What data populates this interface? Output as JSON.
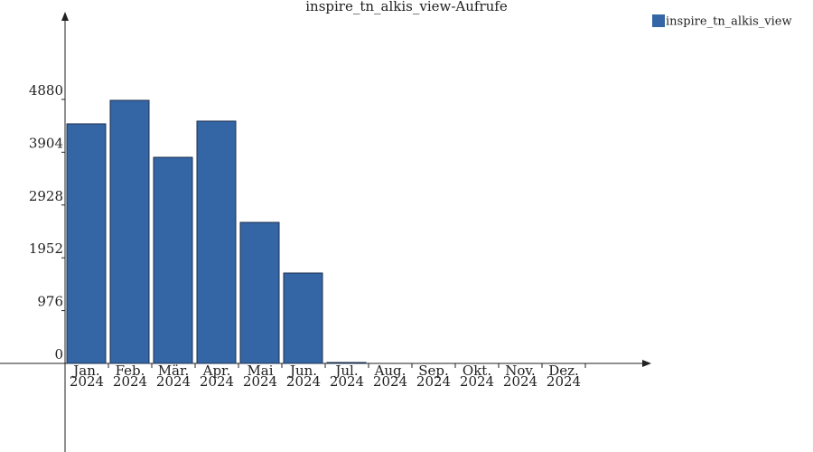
{
  "chart_data": {
    "type": "bar",
    "title": "inspire_tn_alkis_view-Aufrufe",
    "categories": [
      "Jan.\n2024",
      "Feb.\n2024",
      "Mär.\n2024",
      "Apr.\n2024",
      "Mai\n2024",
      "Jun.\n2024",
      "Jul.\n2024",
      "Aug.\n2024",
      "Sep.\n2024",
      "Okt.\n2024",
      "Nov.\n2024",
      "Dez.\n2024"
    ],
    "series": [
      {
        "name": "inspire_tn_alkis_view",
        "color": "#3465a4",
        "values": [
          4429,
          4863,
          3810,
          4479,
          2607,
          1671,
          17,
          0,
          0,
          0,
          0,
          0
        ]
      }
    ],
    "ylim": [
      0,
      6417
    ],
    "yticks": [
      0,
      976,
      1952,
      2928,
      3904,
      4880
    ],
    "legend": "top-right"
  }
}
